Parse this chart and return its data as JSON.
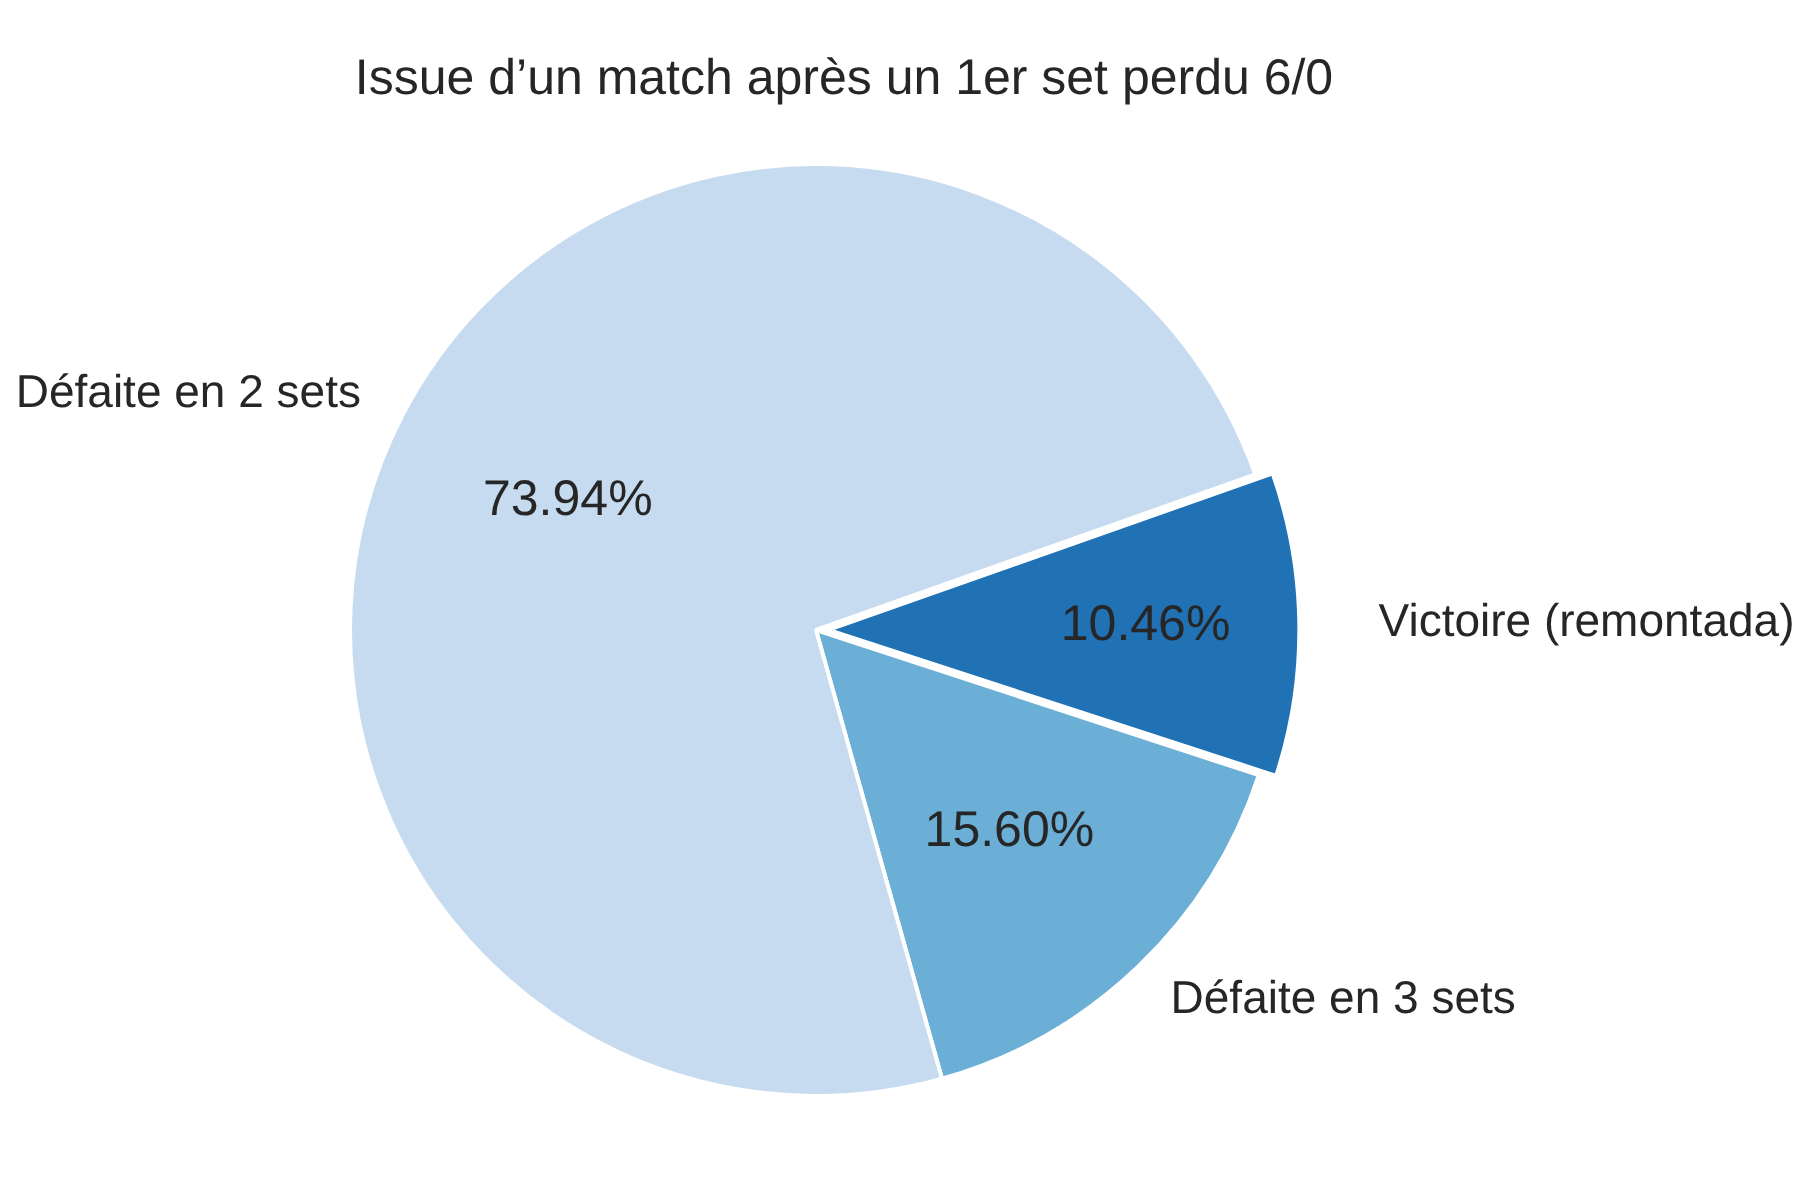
{
  "chart_data": {
    "type": "pie",
    "title": "Issue d’un match après un 1er set perdu 6/0",
    "categories": [
      "Victoire (remontada)",
      "Défaite en 3 sets",
      "Défaite en 2 sets"
    ],
    "values": [
      10.46,
      15.6,
      73.94
    ],
    "colors": [
      "#2171b5",
      "#6baed6",
      "#c6dbef"
    ],
    "value_labels": [
      "10.46%",
      "15.60%",
      "73.94%"
    ],
    "legend": false
  }
}
